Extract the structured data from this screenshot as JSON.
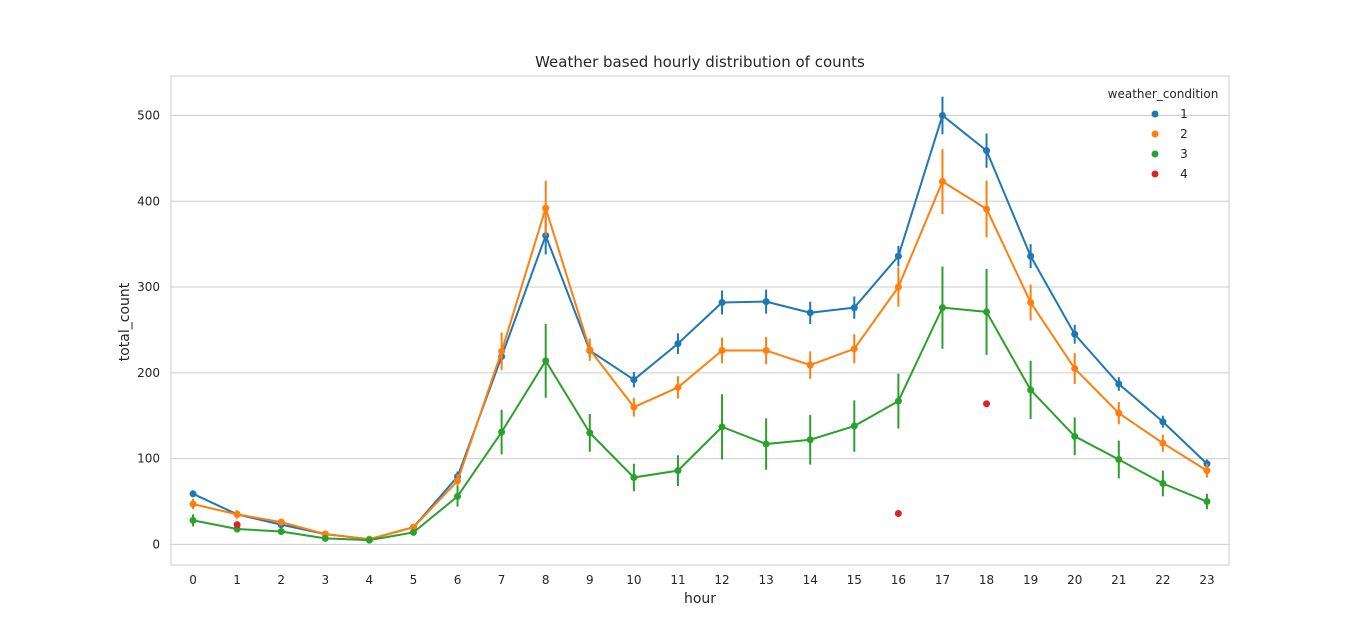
{
  "chart_data": {
    "type": "line",
    "title": "Weather based hourly distribution of counts",
    "xlabel": "hour",
    "ylabel": "total_count",
    "categories": [
      0,
      1,
      2,
      3,
      4,
      5,
      6,
      7,
      8,
      9,
      10,
      11,
      12,
      13,
      14,
      15,
      16,
      17,
      18,
      19,
      20,
      21,
      22,
      23
    ],
    "yticks": [
      0,
      100,
      200,
      300,
      400,
      500
    ],
    "ylim": [
      -24,
      546
    ],
    "grid": true,
    "legend": {
      "title": "weather_condition",
      "placement": "top-right"
    },
    "series": [
      {
        "name": "1",
        "color": "#1f77b4",
        "connected": true,
        "values": [
          59,
          35,
          23,
          12,
          6,
          20,
          79,
          219,
          360,
          226,
          192,
          234,
          282,
          283,
          270,
          276,
          336,
          500,
          459,
          336,
          245,
          187,
          143,
          94
        ],
        "err": [
          4,
          3,
          2,
          1,
          1,
          2,
          6,
          10,
          22,
          8,
          9,
          12,
          14,
          14,
          13,
          13,
          12,
          22,
          20,
          14,
          11,
          8,
          7,
          5
        ]
      },
      {
        "name": "2",
        "color": "#ff7f0e",
        "connected": true,
        "values": [
          47,
          35,
          26,
          12,
          6,
          20,
          74,
          225,
          392,
          227,
          160,
          183,
          226,
          226,
          209,
          228,
          300,
          423,
          391,
          282,
          205,
          153,
          118,
          86
        ],
        "err": [
          6,
          5,
          4,
          2,
          1,
          3,
          8,
          22,
          32,
          13,
          11,
          13,
          15,
          16,
          16,
          17,
          23,
          38,
          33,
          21,
          18,
          13,
          10,
          8
        ]
      },
      {
        "name": "3",
        "color": "#2ca02c",
        "connected": true,
        "values": [
          28,
          18,
          15,
          7,
          5,
          14,
          56,
          131,
          214,
          130,
          78,
          86,
          137,
          117,
          122,
          138,
          167,
          276,
          271,
          180,
          126,
          99,
          71,
          50
        ],
        "err": [
          7,
          4,
          4,
          2,
          1,
          3,
          12,
          26,
          43,
          22,
          16,
          18,
          38,
          30,
          29,
          30,
          32,
          48,
          50,
          34,
          22,
          22,
          15,
          9
        ]
      },
      {
        "name": "4",
        "color": "#d62728",
        "connected": false,
        "x": [
          1,
          16,
          18
        ],
        "values": [
          23,
          36,
          164
        ]
      }
    ]
  }
}
